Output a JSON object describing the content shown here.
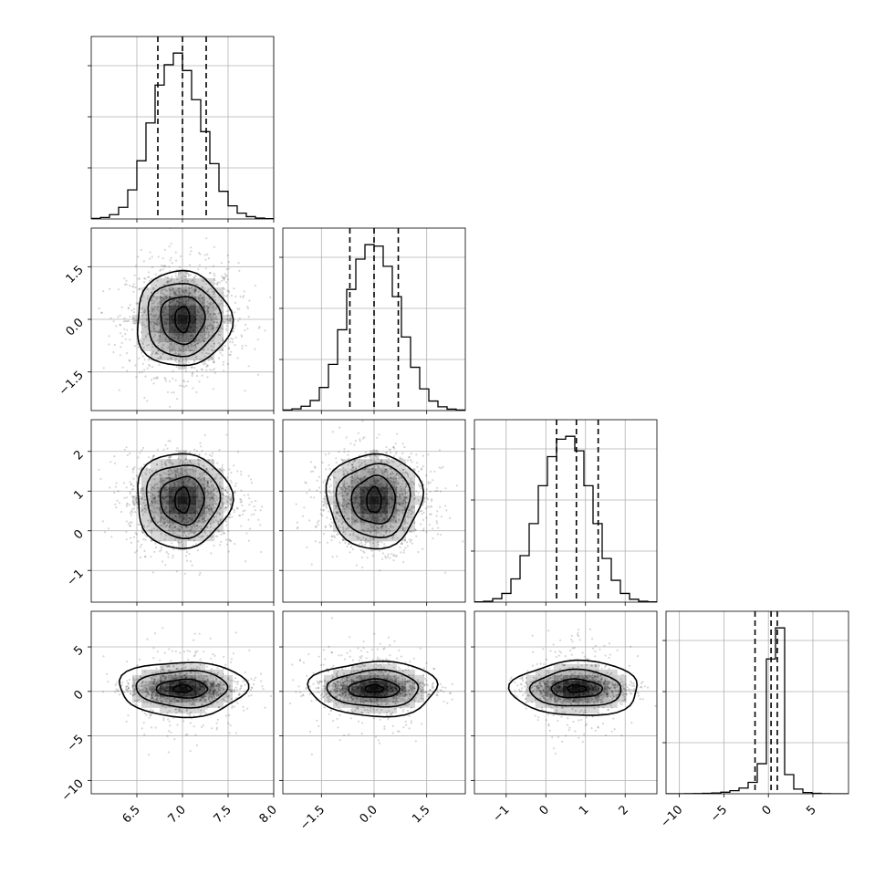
{
  "chart_data": {
    "type": "corner",
    "grid": true,
    "parameters": [
      {
        "range": [
          6.0,
          8.0
        ],
        "x_ticks": [
          6.5,
          7.0,
          7.5,
          8.0
        ],
        "x_tick_labels": [
          "6.5",
          "7.0",
          "7.5",
          "8.0"
        ],
        "quantiles": [
          6.73,
          7.0,
          7.26
        ],
        "hist": {
          "edges": [
            6.0,
            6.1,
            6.2,
            6.3,
            6.4,
            6.5,
            6.6,
            6.7,
            6.8,
            6.9,
            7.0,
            7.1,
            7.2,
            7.3,
            7.4,
            7.5,
            7.6,
            7.7,
            7.8,
            7.9,
            8.0
          ],
          "counts": [
            2,
            5,
            15,
            40,
            100,
            200,
            330,
            460,
            530,
            570,
            510,
            410,
            300,
            190,
            95,
            45,
            20,
            8,
            3,
            1
          ]
        }
      },
      {
        "range": [
          -2.6,
          2.6
        ],
        "x_ticks": [
          -1.5,
          0.0,
          1.5
        ],
        "x_tick_labels": [
          "−1.5",
          "0.0",
          "1.5"
        ],
        "y_ticks": [
          -1.5,
          0.0,
          1.5
        ],
        "y_tick_labels": [
          "−1.5",
          "0.0",
          "1.5"
        ],
        "quantiles": [
          -0.69,
          0.0,
          0.69
        ],
        "hist": {
          "edges": [
            -2.6,
            -2.34,
            -2.08,
            -1.82,
            -1.56,
            -1.3,
            -1.04,
            -0.78,
            -0.52,
            -0.26,
            0.0,
            0.26,
            0.52,
            0.78,
            1.04,
            1.3,
            1.56,
            1.82,
            2.08,
            2.34,
            2.6
          ],
          "counts": [
            2,
            6,
            15,
            35,
            80,
            160,
            280,
            420,
            525,
            575,
            570,
            500,
            395,
            255,
            150,
            75,
            33,
            13,
            5,
            2
          ]
        }
      },
      {
        "range": [
          -1.8,
          2.8
        ],
        "x_ticks": [
          -1,
          0,
          1,
          2
        ],
        "x_tick_labels": [
          "−1",
          "0",
          "1",
          "2"
        ],
        "y_ticks": [
          -1,
          0,
          1,
          2
        ],
        "y_tick_labels": [
          "−1",
          "0",
          "1",
          "2"
        ],
        "quantiles": [
          0.27,
          0.77,
          1.32
        ],
        "hist": {
          "edges": [
            -1.8,
            -1.57,
            -1.34,
            -1.11,
            -0.88,
            -0.65,
            -0.42,
            -0.19,
            0.04,
            0.27,
            0.5,
            0.73,
            0.96,
            1.19,
            1.42,
            1.65,
            1.88,
            2.11,
            2.34,
            2.57,
            2.8
          ],
          "counts": [
            1,
            3,
            12,
            30,
            80,
            160,
            270,
            400,
            500,
            560,
            570,
            520,
            400,
            270,
            150,
            75,
            30,
            10,
            3,
            1
          ]
        }
      },
      {
        "range": [
          -11.5,
          9.0
        ],
        "x_ticks": [
          -10,
          -5,
          0,
          5
        ],
        "x_tick_labels": [
          "−10",
          "−5",
          "0",
          "5"
        ],
        "y_ticks": [
          -10,
          -5,
          0,
          5
        ],
        "y_tick_labels": [
          "−10",
          "−5",
          "0",
          "5"
        ],
        "quantiles": [
          -1.5,
          0.3,
          1.0
        ],
        "hist": {
          "edges": [
            -11.5,
            -10.475,
            -9.45,
            -8.425,
            -7.4,
            -6.375,
            -5.35,
            -4.325,
            -3.3,
            -2.275,
            -1.25,
            -0.225,
            0.8,
            1.825,
            2.85,
            3.875,
            4.9,
            5.925,
            6.95,
            7.975,
            9.0
          ],
          "counts": [
            0,
            0,
            1,
            2,
            4,
            8,
            15,
            30,
            55,
            110,
            290,
            1300,
            1600,
            185,
            45,
            12,
            4,
            1,
            0,
            0
          ]
        }
      }
    ]
  }
}
